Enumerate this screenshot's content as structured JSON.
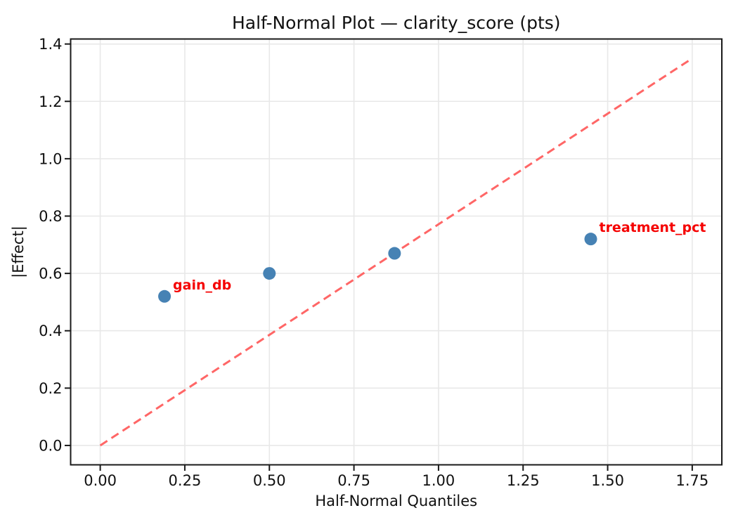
{
  "figure": {
    "title": "Half-Normal Plot — clarity_score (pts)",
    "xlabel": "Half-Normal Quantiles",
    "ylabel": "|Effect|"
  },
  "chart_data": {
    "type": "scatter",
    "title": "Half-Normal Plot — clarity_score (pts)",
    "xlabel": "Half-Normal Quantiles",
    "ylabel": "|Effect|",
    "xlim": [
      -0.0875,
      1.8375
    ],
    "ylim": [
      -0.0675,
      1.4175
    ],
    "x_ticks": [
      0.0,
      0.25,
      0.5,
      0.75,
      1.0,
      1.25,
      1.5,
      1.75
    ],
    "x_tick_labels": [
      "0.00",
      "0.25",
      "0.50",
      "0.75",
      "1.00",
      "1.25",
      "1.50",
      "1.75"
    ],
    "y_ticks": [
      0.0,
      0.2,
      0.4,
      0.6,
      0.8,
      1.0,
      1.2,
      1.4
    ],
    "y_tick_labels": [
      "0.0",
      "0.2",
      "0.4",
      "0.6",
      "0.8",
      "1.0",
      "1.2",
      "1.4"
    ],
    "grid": true,
    "legend": false,
    "points": [
      {
        "x": 0.19,
        "y": 0.52,
        "label": "gain_db"
      },
      {
        "x": 0.5,
        "y": 0.6,
        "label": null
      },
      {
        "x": 0.87,
        "y": 0.67,
        "label": null
      },
      {
        "x": 1.45,
        "y": 0.72,
        "label": "treatment_pct"
      }
    ],
    "reference_line": {
      "x": [
        0.0,
        1.75
      ],
      "y": [
        0.0,
        1.35
      ],
      "style": "dashed"
    },
    "colors": {
      "point": "#4682B4",
      "reference_line": "#FF6666",
      "annotation": "#F50000",
      "grid": "#E8E8E8",
      "spine": "#1A1A1A",
      "background": "#FFFFFF"
    }
  }
}
